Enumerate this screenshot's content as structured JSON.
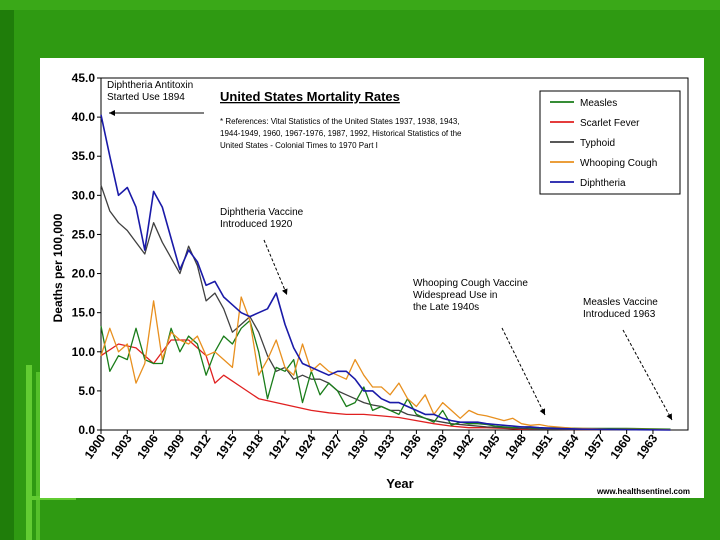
{
  "chart_data": {
    "type": "line",
    "title": "United States Mortality Rates",
    "references_text": [
      "* References: Vital Statistics of the United States 1937, 1938, 1943,",
      "1944-1949, 1960, 1967-1976, 1987, 1992, Historical Statistics of the",
      "United States - Colonial Times to 1970 Part I"
    ],
    "xlabel": "Year",
    "ylabel": "Deaths per 100,000",
    "ylim": [
      0,
      45
    ],
    "xlim": [
      1900,
      1967
    ],
    "y_ticks": [
      "0.0",
      "5.0",
      "10.0",
      "15.0",
      "20.0",
      "25.0",
      "30.0",
      "35.0",
      "40.0",
      "45.0"
    ],
    "x_ticks": [
      "1900",
      "1903",
      "1906",
      "1909",
      "1912",
      "1915",
      "1918",
      "1921",
      "1924",
      "1927",
      "1930",
      "1933",
      "1936",
      "1939",
      "1942",
      "1945",
      "1948",
      "1951",
      "1954",
      "1957",
      "1960",
      "1963"
    ],
    "legend_position": "top-right",
    "series": [
      {
        "name": "Measles",
        "color": "#1a7d1a",
        "x": [
          1900,
          1901,
          1902,
          1903,
          1904,
          1905,
          1906,
          1907,
          1908,
          1909,
          1910,
          1911,
          1912,
          1913,
          1914,
          1915,
          1916,
          1917,
          1918,
          1919,
          1920,
          1921,
          1922,
          1923,
          1924,
          1925,
          1926,
          1927,
          1928,
          1929,
          1930,
          1931,
          1932,
          1933,
          1934,
          1935,
          1936,
          1937,
          1938,
          1939,
          1940,
          1941,
          1942,
          1943,
          1944,
          1945,
          1946,
          1947,
          1948,
          1949,
          1950,
          1952,
          1955,
          1960,
          1965
        ],
        "values": [
          13.3,
          7.5,
          9.5,
          9.0,
          13.0,
          9.0,
          8.5,
          8.5,
          13.0,
          10.0,
          12.0,
          11.0,
          7.0,
          10.0,
          12.0,
          11.0,
          13.0,
          14.0,
          10.0,
          4.0,
          8.0,
          7.5,
          9.0,
          3.5,
          7.5,
          4.5,
          6.0,
          5.0,
          3.0,
          3.5,
          5.5,
          2.5,
          3.0,
          2.5,
          2.0,
          4.0,
          2.0,
          1.5,
          1.0,
          2.5,
          0.6,
          1.0,
          0.8,
          0.8,
          0.7,
          0.5,
          0.4,
          0.3,
          0.4,
          0.3,
          0.2,
          0.3,
          0.2,
          0.2,
          0.1
        ]
      },
      {
        "name": "Scarlet Fever",
        "color": "#e02020",
        "x": [
          1900,
          1902,
          1904,
          1906,
          1908,
          1910,
          1912,
          1913,
          1914,
          1916,
          1918,
          1920,
          1922,
          1924,
          1926,
          1928,
          1930,
          1932,
          1934,
          1936,
          1938,
          1940,
          1942,
          1944,
          1946,
          1948,
          1950,
          1955,
          1960,
          1965
        ],
        "values": [
          9.5,
          11.0,
          10.5,
          8.5,
          11.5,
          11.5,
          9.5,
          6.0,
          7.0,
          5.5,
          4.0,
          3.5,
          3.0,
          2.5,
          2.2,
          2.0,
          2.0,
          1.8,
          1.6,
          1.2,
          0.8,
          0.5,
          0.3,
          0.3,
          0.2,
          0.1,
          0.1,
          0.05,
          0.02,
          0.01
        ]
      },
      {
        "name": "Typhoid",
        "color": "#404040",
        "x": [
          1900,
          1901,
          1902,
          1903,
          1904,
          1905,
          1906,
          1907,
          1908,
          1909,
          1910,
          1911,
          1912,
          1913,
          1914,
          1915,
          1916,
          1917,
          1918,
          1919,
          1920,
          1921,
          1922,
          1923,
          1924,
          1925,
          1926,
          1927,
          1928,
          1929,
          1930,
          1931,
          1932,
          1933,
          1934,
          1935,
          1936,
          1937,
          1938,
          1939,
          1940,
          1942,
          1944,
          1946,
          1948,
          1950,
          1955,
          1960,
          1965
        ],
        "values": [
          31.3,
          28.0,
          26.5,
          25.5,
          24.0,
          22.5,
          26.5,
          24.0,
          22.0,
          20.0,
          23.5,
          21.0,
          16.5,
          17.5,
          15.5,
          12.5,
          13.5,
          14.5,
          12.5,
          9.5,
          7.5,
          8.0,
          6.5,
          7.0,
          6.5,
          6.5,
          6.0,
          5.0,
          4.5,
          4.0,
          3.5,
          3.2,
          3.0,
          2.5,
          2.5,
          2.0,
          1.8,
          1.5,
          1.2,
          1.0,
          0.8,
          0.6,
          0.4,
          0.3,
          0.2,
          0.1,
          0.05,
          0.02,
          0.01
        ]
      },
      {
        "name": "Whooping Cough",
        "color": "#e8901f",
        "x": [
          1900,
          1901,
          1902,
          1903,
          1904,
          1905,
          1906,
          1907,
          1908,
          1909,
          1910,
          1911,
          1912,
          1913,
          1914,
          1915,
          1916,
          1917,
          1918,
          1919,
          1920,
          1921,
          1922,
          1923,
          1924,
          1925,
          1926,
          1927,
          1928,
          1929,
          1930,
          1931,
          1932,
          1933,
          1934,
          1935,
          1936,
          1937,
          1938,
          1939,
          1940,
          1941,
          1942,
          1943,
          1944,
          1945,
          1946,
          1947,
          1948,
          1949,
          1950,
          1951,
          1952,
          1953,
          1954,
          1955,
          1958,
          1960,
          1965
        ],
        "values": [
          9.5,
          13.0,
          10.0,
          11.0,
          6.0,
          8.5,
          16.5,
          9.0,
          12.5,
          11.5,
          11.0,
          12.0,
          9.5,
          10.0,
          9.0,
          8.0,
          17.0,
          14.0,
          7.0,
          9.0,
          11.5,
          8.0,
          7.0,
          11.0,
          7.5,
          8.5,
          7.5,
          7.0,
          6.5,
          9.0,
          7.0,
          5.5,
          5.5,
          4.5,
          6.0,
          4.0,
          3.0,
          4.5,
          2.0,
          3.5,
          2.5,
          1.5,
          2.5,
          2.0,
          1.8,
          1.5,
          1.2,
          1.5,
          0.8,
          0.6,
          0.7,
          0.5,
          0.4,
          0.3,
          0.2,
          0.2,
          0.1,
          0.1,
          0.05
        ]
      },
      {
        "name": "Diphtheria",
        "color": "#1a1aa8",
        "x": [
          1900,
          1901,
          1902,
          1903,
          1904,
          1905,
          1906,
          1907,
          1908,
          1909,
          1910,
          1911,
          1912,
          1913,
          1914,
          1915,
          1916,
          1917,
          1918,
          1919,
          1920,
          1921,
          1922,
          1923,
          1924,
          1925,
          1926,
          1927,
          1928,
          1929,
          1930,
          1931,
          1932,
          1933,
          1934,
          1935,
          1936,
          1937,
          1938,
          1939,
          1940,
          1941,
          1942,
          1943,
          1944,
          1945,
          1946,
          1947,
          1948,
          1949,
          1950,
          1952,
          1955,
          1960,
          1965
        ],
        "values": [
          40.3,
          35.0,
          30.0,
          31.0,
          28.5,
          23.0,
          30.5,
          28.5,
          24.5,
          20.5,
          23.0,
          21.5,
          18.5,
          19.0,
          17.0,
          16.0,
          15.0,
          14.5,
          15.0,
          15.5,
          17.5,
          13.5,
          10.5,
          8.5,
          8.0,
          7.5,
          7.0,
          7.5,
          7.5,
          6.5,
          5.0,
          5.0,
          4.0,
          3.5,
          3.5,
          3.0,
          2.5,
          2.0,
          2.0,
          1.5,
          1.2,
          1.0,
          1.0,
          1.0,
          0.8,
          0.7,
          0.6,
          0.5,
          0.4,
          0.4,
          0.3,
          0.2,
          0.1,
          0.05,
          0.0
        ]
      }
    ],
    "annotations": [
      {
        "id": "antitoxin",
        "lines": [
          "Diphtheria Antitoxin",
          "Started Use 1894"
        ]
      },
      {
        "id": "diph-vaccine",
        "lines": [
          "Diphtheria Vaccine",
          "Introduced 1920"
        ]
      },
      {
        "id": "whoop-vaccine",
        "lines": [
          "Whooping Cough Vaccine",
          "Widespread Use in",
          "the Late 1940s"
        ]
      },
      {
        "id": "measles-vaccine",
        "lines": [
          "Measles Vaccine",
          "Introduced 1963"
        ]
      }
    ],
    "source": "www.healthsentinel.com"
  }
}
